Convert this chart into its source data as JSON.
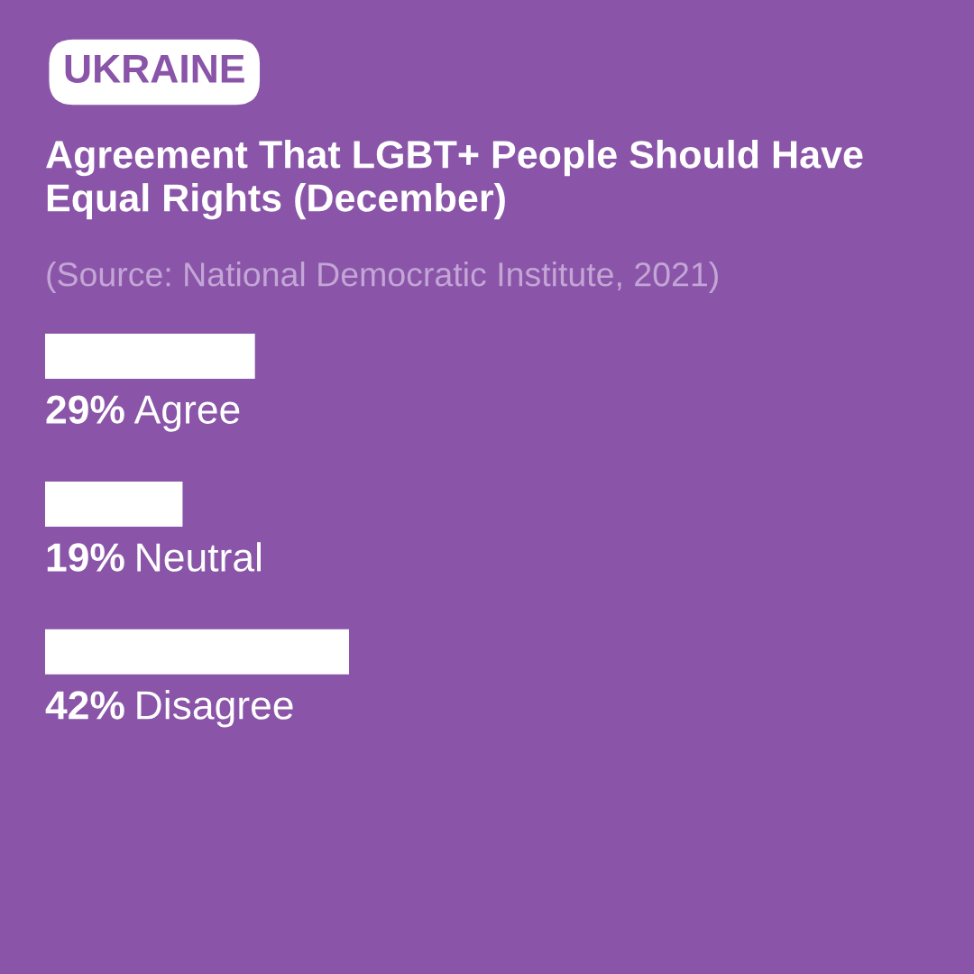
{
  "chart_data": {
    "type": "bar",
    "orientation": "horizontal",
    "title": "Agreement That LGBT+ People Should Have Equal Rights (December)",
    "subtitle": "(Source: National Democratic Institute, 2021)",
    "annotations": [
      "UKRAINE"
    ],
    "categories": [
      "Agree",
      "Neutral",
      "Disagree"
    ],
    "values": [
      29,
      19,
      42
    ],
    "value_labels": [
      "29%",
      "19%",
      "42%"
    ],
    "color": "#ffffff",
    "tick_labels": false
  }
}
